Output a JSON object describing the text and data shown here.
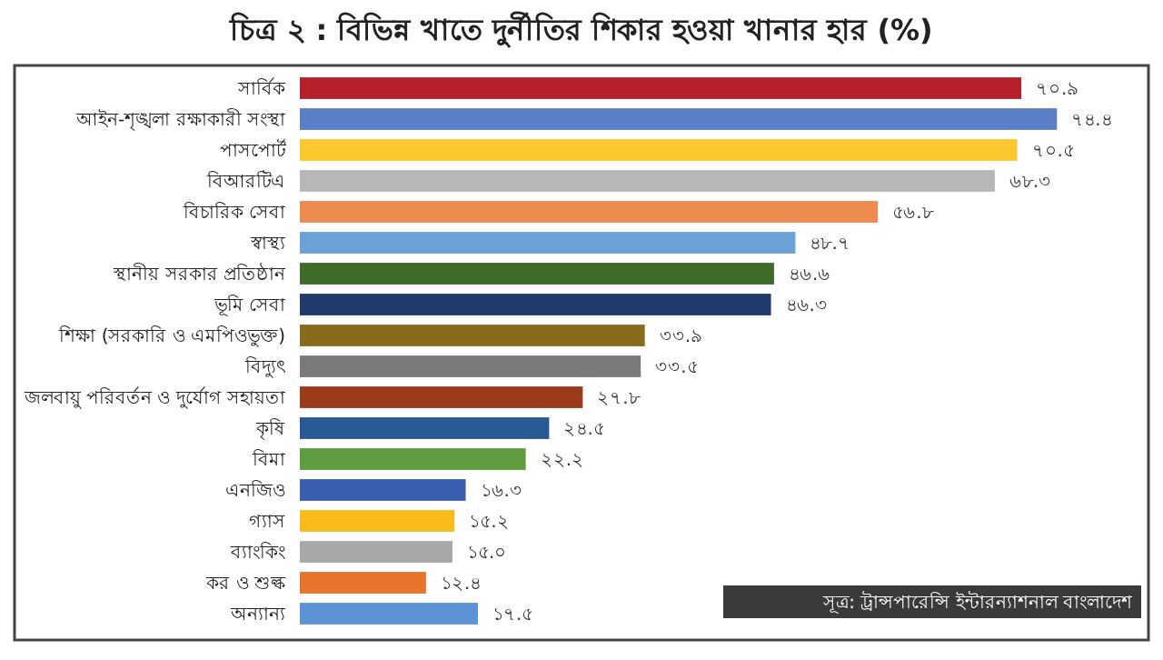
{
  "chart_data": {
    "type": "bar",
    "orientation": "horizontal",
    "title": "চিত্র ২ : বিভিন্ন খাতে দুর্নীতির শিকার হওয়া খানার হার (%)",
    "categories": [
      "সার্বিক",
      "আইন-শৃঙ্খলা রক্ষাকারী সংস্থা",
      "পাসপোর্ট",
      "বিআরটিএ",
      "বিচারিক সেবা",
      "স্বাস্থ্য",
      "স্থানীয় সরকার প্রতিষ্ঠান",
      "ভূমি সেবা",
      "শিক্ষা (সরকারি ও এমপিওভুক্ত)",
      "বিদ্যুৎ",
      "জলবায়ু পরিবর্তন ও দুর্যোগ সহায়তা",
      "কৃষি",
      "বিমা",
      "এনজিও",
      "গ্যাস",
      "ব্যাংকিং",
      "কর ও শুল্ক",
      "অন্যান্য"
    ],
    "values": [
      70.9,
      74.4,
      70.5,
      68.3,
      56.8,
      48.7,
      46.6,
      46.3,
      33.9,
      33.5,
      27.8,
      24.5,
      22.2,
      16.3,
      15.2,
      15.0,
      12.4,
      17.5
    ],
    "value_labels": [
      "৭০.৯",
      "৭৪.৪",
      "৭০.৫",
      "৬৮.৩",
      "৫৬.৮",
      "৪৮.৭",
      "৪৬.৬",
      "৪৬.৩",
      "৩৩.৯",
      "৩৩.৫",
      "২৭.৮",
      "২৪.৫",
      "২২.২",
      "১৬.৩",
      "১৫.২",
      "১৫.০",
      "১২.৪",
      "১৭.৫"
    ],
    "colors": [
      "#b5202a",
      "#5b7fc4",
      "#fdc82d",
      "#b7b7b7",
      "#ec8a4f",
      "#6aa2d8",
      "#3e6a2a",
      "#1f3a6b",
      "#8a6a1c",
      "#7a7a7a",
      "#9b3b1a",
      "#2a5a96",
      "#5e9e3e",
      "#3a5fb0",
      "#f9bb1a",
      "#a8a8a8",
      "#e8732a",
      "#5b93d5"
    ],
    "annotations": [
      "সূত্র: ট্রান্সপারেন্সি ইন্টারন্যাশনাল বাংলাদেশ"
    ]
  }
}
